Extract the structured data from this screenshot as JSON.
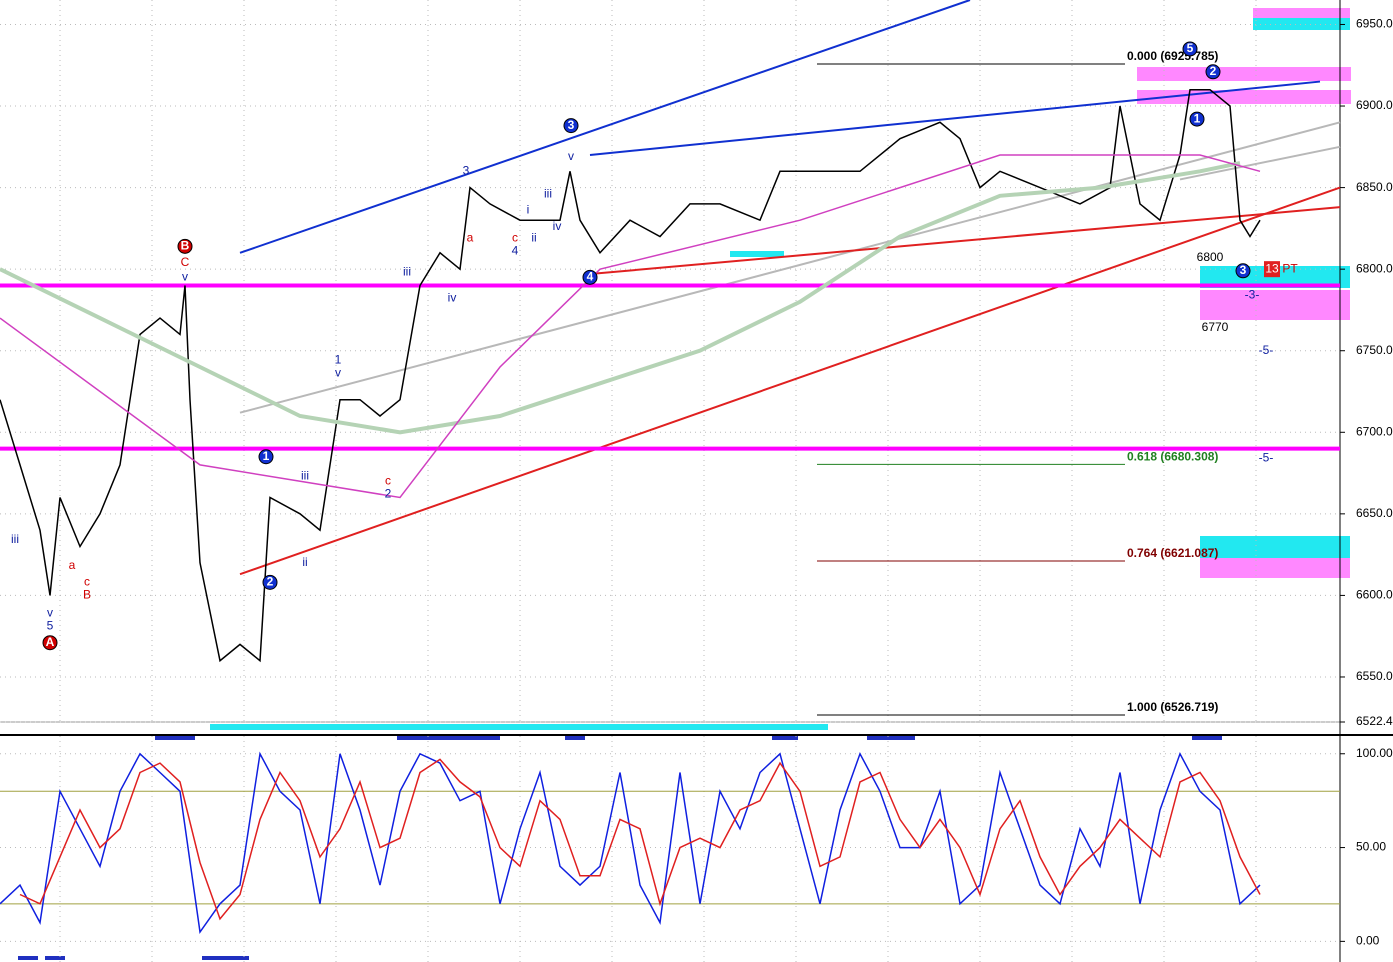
{
  "chart_data": [
    {
      "type": "line",
      "ylim": [
        6522.4,
        6965
      ],
      "xlim": [
        0,
        134
      ],
      "yticks": [
        {
          "value": 6550,
          "label": "6550.00"
        },
        {
          "value": 6600,
          "label": "6600.00"
        },
        {
          "value": 6650,
          "label": "6650.00"
        },
        {
          "value": 6700,
          "label": "6700.00"
        },
        {
          "value": 6750,
          "label": "6750.00"
        },
        {
          "value": 6800,
          "label": "6800.00"
        },
        {
          "value": 6850,
          "label": "6850.00"
        },
        {
          "value": 6900,
          "label": "6900.00"
        },
        {
          "value": 6950,
          "label": "6950.00"
        },
        {
          "value": 6522.4,
          "label": "6522.4"
        }
      ],
      "grid": true,
      "series": [
        {
          "color": "#000000",
          "x": [
            0,
            2,
            4,
            5,
            6,
            8,
            10,
            12,
            14,
            16,
            18,
            18.5,
            19,
            20,
            22,
            24,
            26,
            27,
            30,
            32,
            34,
            36,
            38,
            40,
            42,
            44,
            46,
            47,
            49,
            52,
            56,
            57,
            58,
            60,
            63,
            66,
            69,
            72,
            76,
            78,
            82,
            86,
            90,
            94,
            96,
            98,
            100,
            104,
            108,
            111,
            112,
            114,
            116,
            118,
            119,
            121,
            123,
            124,
            125,
            126
          ],
          "values": [
            6720,
            6680,
            6640,
            6600,
            6660,
            6630,
            6650,
            6680,
            6760,
            6770,
            6760,
            6790,
            6720,
            6620,
            6560,
            6570,
            6560,
            6660,
            6650,
            6640,
            6720,
            6720,
            6710,
            6720,
            6790,
            6810,
            6800,
            6850,
            6840,
            6830,
            6830,
            6860,
            6830,
            6810,
            6830,
            6820,
            6840,
            6840,
            6830,
            6860,
            6860,
            6860,
            6880,
            6890,
            6880,
            6850,
            6860,
            6850,
            6840,
            6850,
            6900,
            6840,
            6830,
            6870,
            6910,
            6910,
            6900,
            6830,
            6820,
            6830
          ]
        },
        {
          "color": "#b5d3b5",
          "x": [
            0,
            10,
            20,
            30,
            40,
            50,
            60,
            70,
            80,
            90,
            100,
            110,
            120,
            124
          ],
          "values": [
            6800,
            6770,
            6740,
            6710,
            6700,
            6710,
            6730,
            6750,
            6780,
            6820,
            6845,
            6850,
            6860,
            6865
          ]
        },
        {
          "color": "#d040c0",
          "x": [
            0,
            20,
            40,
            50,
            60,
            80,
            100,
            120,
            126
          ],
          "values": [
            6770,
            6680,
            6660,
            6740,
            6800,
            6830,
            6870,
            6870,
            6860
          ]
        }
      ],
      "trendlines": [
        {
          "color": "#1030d0",
          "x": [
            24,
            97
          ],
          "y": [
            6810,
            6965
          ]
        },
        {
          "color": "#1030d0",
          "x": [
            59,
            132
          ],
          "y": [
            6870,
            6915
          ]
        },
        {
          "color": "#b8b8b8",
          "x": [
            24,
            134
          ],
          "y": [
            6712,
            6890
          ]
        },
        {
          "color": "#b8b8b8",
          "x": [
            118,
            134
          ],
          "y": [
            6855,
            6875
          ]
        },
        {
          "color": "#e02020",
          "x": [
            24,
            134
          ],
          "y": [
            6613,
            6850
          ]
        },
        {
          "color": "#e02020",
          "x": [
            59,
            134
          ],
          "y": [
            6797,
            6838
          ]
        },
        {
          "color": "#ff00ff",
          "x": [
            0,
            134
          ],
          "y": [
            6790,
            6790
          ]
        },
        {
          "color": "#ff00ff",
          "x": [
            0,
            134
          ],
          "y": [
            6690,
            6690
          ]
        }
      ],
      "fib": [
        {
          "label": "0.000 (6925.785)",
          "value": 6925.785,
          "color": "#000000"
        },
        {
          "label": "0.618 (6680.308)",
          "value": 6680.308,
          "color": "#208020"
        },
        {
          "label": "0.764 (6621.087)",
          "value": 6621.087,
          "color": "#800000"
        },
        {
          "label": "1.000 (6526.719)",
          "value": 6526.719,
          "color": "#000000"
        }
      ],
      "labels": [
        {
          "text": "B",
          "x": 18.5,
          "y": 6814,
          "color": "#d00000",
          "circle": true
        },
        {
          "text": "C",
          "x": 18.5,
          "y": 6804,
          "color": "#d00000"
        },
        {
          "text": "v",
          "x": 18.5,
          "y": 6795,
          "color": "#1020a0"
        },
        {
          "text": "A",
          "x": 5,
          "y": 6571,
          "color": "#d00000",
          "circle": true
        },
        {
          "text": "5",
          "x": 5,
          "y": 6581,
          "color": "#1020a0"
        },
        {
          "text": "v",
          "x": 5,
          "y": 6589,
          "color": "#1020a0"
        },
        {
          "text": "iii",
          "x": 1.5,
          "y": 6634,
          "color": "#1020a0"
        },
        {
          "text": "a",
          "x": 7.2,
          "y": 6618,
          "color": "#d00000"
        },
        {
          "text": "c",
          "x": 8.7,
          "y": 6608,
          "color": "#d00000"
        },
        {
          "text": "B",
          "x": 8.7,
          "y": 6600,
          "color": "#d00000"
        },
        {
          "text": "1",
          "x": 26.6,
          "y": 6685,
          "color": "#1020a0",
          "circle": true
        },
        {
          "text": "2",
          "x": 27,
          "y": 6608,
          "color": "#1020a0",
          "circle": true
        },
        {
          "text": "iii",
          "x": 30.5,
          "y": 6673,
          "color": "#1020a0"
        },
        {
          "text": "ii",
          "x": 30.5,
          "y": 6620,
          "color": "#1020a0"
        },
        {
          "text": "1",
          "x": 33.8,
          "y": 6744,
          "color": "#1020a0"
        },
        {
          "text": "v",
          "x": 33.8,
          "y": 6736,
          "color": "#1020a0"
        },
        {
          "text": "c",
          "x": 38.8,
          "y": 6670,
          "color": "#d00000"
        },
        {
          "text": "2",
          "x": 38.8,
          "y": 6662,
          "color": "#1020a0"
        },
        {
          "text": "iii",
          "x": 40.7,
          "y": 6798,
          "color": "#1020a0"
        },
        {
          "text": "iv",
          "x": 45.2,
          "y": 6782,
          "color": "#1020a0"
        },
        {
          "text": "3",
          "x": 46.6,
          "y": 6860,
          "color": "#1020a0"
        },
        {
          "text": "a",
          "x": 47,
          "y": 6819,
          "color": "#d00000"
        },
        {
          "text": "c",
          "x": 51.5,
          "y": 6819,
          "color": "#d00000"
        },
        {
          "text": "4",
          "x": 51.5,
          "y": 6811,
          "color": "#1020a0"
        },
        {
          "text": "i",
          "x": 52.8,
          "y": 6836,
          "color": "#1020a0"
        },
        {
          "text": "ii",
          "x": 53.4,
          "y": 6819,
          "color": "#1020a0"
        },
        {
          "text": "iii",
          "x": 54.8,
          "y": 6846,
          "color": "#1020a0"
        },
        {
          "text": "iv",
          "x": 55.7,
          "y": 6826,
          "color": "#1020a0"
        },
        {
          "text": "3",
          "x": 57.1,
          "y": 6888,
          "color": "#1020a0",
          "circle": true
        },
        {
          "text": "v",
          "x": 57.1,
          "y": 6869,
          "color": "#1020a0"
        },
        {
          "text": "4",
          "x": 59,
          "y": 6795,
          "color": "#1020a0",
          "circle": true
        },
        {
          "text": "5",
          "x": 119,
          "y": 6935,
          "color": "#1020a0",
          "circle": true
        },
        {
          "text": "2",
          "x": 121.3,
          "y": 6921,
          "color": "#1020a0",
          "circle": true
        },
        {
          "text": "1",
          "x": 119.7,
          "y": 6892,
          "color": "#1020a0",
          "circle": true
        },
        {
          "text": "3",
          "x": 124.3,
          "y": 6799,
          "color": "#1020a0",
          "circle": true
        },
        {
          "text": "6800",
          "x": 121,
          "y": 6807,
          "color": "#000000"
        },
        {
          "text": "6770",
          "x": 121.5,
          "y": 6764,
          "color": "#000000"
        },
        {
          "text": "-3-",
          "x": 125.2,
          "y": 6784,
          "color": "#1020a0"
        },
        {
          "text": "-5-",
          "x": 126.6,
          "y": 6750,
          "color": "#1020a0"
        },
        {
          "text": "-5-",
          "x": 126.6,
          "y": 6684,
          "color": "#1020a0"
        },
        {
          "text": "13",
          "x": 127.2,
          "y": 6800,
          "color": "#ffffff",
          "box": true
        },
        {
          "text": "PT",
          "x": 129,
          "y": 6800,
          "color": "#d00000"
        }
      ]
    },
    {
      "type": "line",
      "ylim": [
        -11,
        110
      ],
      "xlim": [
        0,
        134
      ],
      "yticks": [
        {
          "value": 100,
          "label": "100.00"
        },
        {
          "value": 50,
          "label": "50.00"
        },
        {
          "value": 0,
          "label": "0.00"
        }
      ],
      "grid": true,
      "bands": [
        20,
        80
      ],
      "band_color": "#a0a040",
      "series": [
        {
          "color": "#1020e0",
          "x": [
            0,
            2,
            4,
            6,
            8,
            10,
            12,
            14,
            16,
            18,
            20,
            22,
            24,
            26,
            28,
            30,
            32,
            34,
            36,
            38,
            40,
            42,
            44,
            46,
            48,
            50,
            52,
            54,
            56,
            58,
            60,
            62,
            64,
            66,
            68,
            70,
            72,
            74,
            76,
            78,
            80,
            82,
            84,
            86,
            88,
            90,
            92,
            94,
            96,
            98,
            100,
            102,
            104,
            106,
            108,
            110,
            112,
            114,
            116,
            118,
            120,
            122,
            124,
            126
          ],
          "values": [
            20,
            30,
            10,
            80,
            60,
            40,
            80,
            100,
            90,
            80,
            5,
            20,
            30,
            100,
            80,
            70,
            20,
            100,
            70,
            30,
            80,
            100,
            95,
            75,
            80,
            20,
            60,
            90,
            40,
            30,
            40,
            90,
            30,
            10,
            90,
            20,
            80,
            60,
            90,
            100,
            60,
            20,
            70,
            100,
            80,
            50,
            50,
            80,
            20,
            30,
            90,
            60,
            30,
            20,
            60,
            40,
            90,
            20,
            70,
            100,
            80,
            70,
            20,
            30
          ]
        },
        {
          "color": "#e02020",
          "x": [
            2,
            4,
            6,
            8,
            10,
            12,
            14,
            16,
            18,
            20,
            22,
            24,
            26,
            28,
            30,
            32,
            34,
            36,
            38,
            40,
            42,
            44,
            46,
            48,
            50,
            52,
            54,
            56,
            58,
            60,
            62,
            64,
            66,
            68,
            70,
            72,
            74,
            76,
            78,
            80,
            82,
            84,
            86,
            88,
            90,
            92,
            94,
            96,
            98,
            100,
            102,
            104,
            106,
            108,
            110,
            112,
            114,
            116,
            118,
            120,
            122,
            124,
            126
          ],
          "values": [
            25,
            20,
            45,
            70,
            50,
            60,
            90,
            95,
            85,
            42,
            12,
            25,
            65,
            90,
            75,
            45,
            60,
            85,
            50,
            55,
            90,
            97,
            85,
            77,
            50,
            40,
            75,
            65,
            35,
            35,
            65,
            60,
            20,
            50,
            55,
            50,
            70,
            75,
            95,
            80,
            40,
            45,
            85,
            90,
            65,
            50,
            65,
            50,
            25,
            60,
            75,
            45,
            25,
            40,
            50,
            65,
            55,
            45,
            85,
            90,
            75,
            45,
            25
          ]
        }
      ]
    }
  ]
}
